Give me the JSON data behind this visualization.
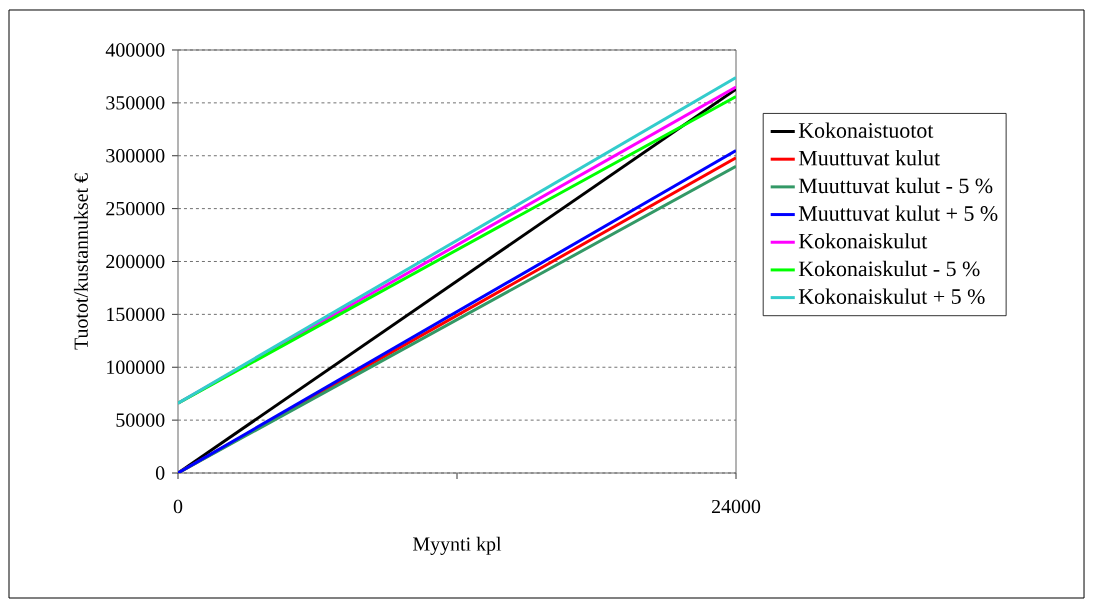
{
  "chart_data": {
    "type": "line",
    "xlabel": "Myynti kpl",
    "ylabel": "Tuotot/kustannukset €",
    "x": [
      0,
      24000
    ],
    "series": [
      {
        "name": "Kokonaistuotot",
        "color": "#000000",
        "values": [
          0,
          363000
        ]
      },
      {
        "name": "Muuttuvat kulut",
        "color": "#ff0000",
        "values": [
          0,
          298000
        ]
      },
      {
        "name": "Muuttuvat kulut - 5 %",
        "color": "#339966",
        "values": [
          0,
          290000
        ]
      },
      {
        "name": "Muuttuvat kulut + 5 %",
        "color": "#0000ff",
        "values": [
          0,
          305000
        ]
      },
      {
        "name": "Kokonaiskulut",
        "color": "#ff00ff",
        "values": [
          66000,
          365000
        ]
      },
      {
        "name": "Kokonaiskulut - 5 %",
        "color": "#00ff00",
        "values": [
          66000,
          356000
        ]
      },
      {
        "name": "Kokonaiskulut + 5 %",
        "color": "#33cccc",
        "values": [
          66000,
          374000
        ]
      }
    ],
    "xlim": [
      0,
      24000
    ],
    "xticks": [
      0,
      {
        "value": 12000,
        "label": null
      },
      24000
    ],
    "ylim": [
      0,
      400000
    ],
    "yticks": [
      0,
      50000,
      100000,
      150000,
      200000,
      250000,
      300000,
      350000,
      400000
    ],
    "grid": "y",
    "legend": "right",
    "marker": "none",
    "line_style": "solid"
  }
}
